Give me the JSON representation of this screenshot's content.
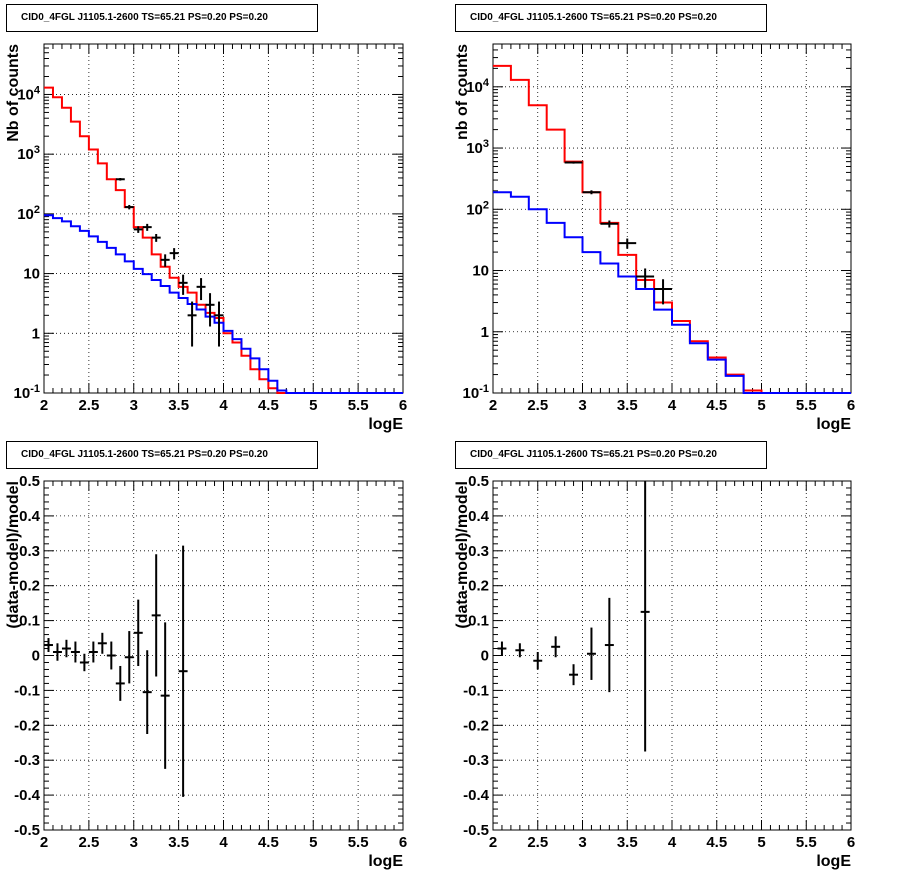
{
  "colors": {
    "model_total": "#ff0000",
    "model_background": "#0000ff",
    "data": "#000000",
    "grid": "#000000"
  },
  "chart_data": [
    {
      "type": "histogram-with-errorbars",
      "title": "CID0_4FGL J1105.1-2600 TS=65.21 PS=0.20 PS=0.20",
      "xlabel": "logE",
      "ylabel": "Nb of counts",
      "xlim": [
        2,
        6
      ],
      "ylim": [
        0.1,
        70000
      ],
      "yscale": "log",
      "x_ticks": [
        "2",
        "2.5",
        "3",
        "3.5",
        "4",
        "4.5",
        "5",
        "5.5",
        "6"
      ],
      "y_ticks": [
        "10^-1",
        "1",
        "10",
        "10^2",
        "10^3",
        "10^4"
      ],
      "grid": true,
      "bin_width": 0.1,
      "series": [
        {
          "color": "red",
          "bin_edges": [
            2,
            2.1,
            2.2,
            2.3,
            2.4,
            2.5,
            2.6,
            2.7,
            2.8,
            2.9,
            3.0,
            3.1,
            3.2,
            3.3,
            3.4,
            3.5,
            3.6,
            3.7,
            3.8,
            3.9,
            4.0,
            4.1,
            4.2,
            4.3,
            4.4,
            4.5,
            4.6,
            4.7,
            4.8,
            4.9,
            5.0,
            5.1,
            5.2,
            5.3,
            5.4,
            5.5,
            5.6,
            5.7,
            5.8,
            5.9,
            6.0
          ],
          "values": [
            13000,
            9000,
            6000,
            3500,
            2000,
            1200,
            700,
            380,
            250,
            130,
            60,
            40,
            21,
            13,
            8.5,
            6,
            4.8,
            3,
            2.2,
            1.8,
            1.0,
            0.7,
            0.42,
            0.25,
            0.17,
            0.12,
            0.1,
            0.1,
            0.1,
            0.1,
            0.1,
            0.1,
            0.1,
            0.1,
            0.1,
            0.1,
            0.1,
            0.1,
            0.1,
            0.1
          ]
        },
        {
          "color": "blue",
          "bin_edges": [
            2,
            2.1,
            2.2,
            2.3,
            2.4,
            2.5,
            2.6,
            2.7,
            2.8,
            2.9,
            3.0,
            3.1,
            3.2,
            3.3,
            3.4,
            3.5,
            3.6,
            3.7,
            3.8,
            3.9,
            4.0,
            4.1,
            4.2,
            4.3,
            4.4,
            4.5,
            4.6,
            4.7,
            4.8,
            4.9,
            5.0,
            5.1,
            5.2,
            5.3,
            5.4,
            5.5,
            5.6,
            5.7,
            5.8,
            5.9,
            6.0
          ],
          "values": [
            95,
            85,
            75,
            62,
            52,
            42,
            34,
            27,
            21,
            16,
            12,
            9.8,
            7.8,
            6.2,
            4.8,
            3.9,
            3.1,
            2.5,
            1.9,
            1.5,
            1.1,
            0.8,
            0.55,
            0.38,
            0.25,
            0.16,
            0.11,
            0.1,
            0.1,
            0.1,
            0.1,
            0.1,
            0.1,
            0.1,
            0.1,
            0.1,
            0.1,
            0.1,
            0.1,
            0.1
          ]
        }
      ],
      "data_points": [
        {
          "x": 2.85,
          "y": 380,
          "err": 19
        },
        {
          "x": 2.95,
          "y": 130,
          "err": 11
        },
        {
          "x": 3.05,
          "y": 55,
          "err": 7
        },
        {
          "x": 3.15,
          "y": 60,
          "err": 8
        },
        {
          "x": 3.25,
          "y": 40,
          "err": 6
        },
        {
          "x": 3.35,
          "y": 17,
          "err": 4
        },
        {
          "x": 3.45,
          "y": 22,
          "err": 4.7
        },
        {
          "x": 3.55,
          "y": 7,
          "err": 2.6
        },
        {
          "x": 3.65,
          "y": 2,
          "err": 1.4
        },
        {
          "x": 3.75,
          "y": 6,
          "err": 2.4
        },
        {
          "x": 3.85,
          "y": 3,
          "err": 1.7
        },
        {
          "x": 3.95,
          "y": 2,
          "err": 1.4
        }
      ]
    },
    {
      "type": "histogram-with-errorbars",
      "title": "CID0_4FGL J1105.1-2600 TS=65.21 PS=0.20 PS=0.20",
      "xlabel": "logE",
      "ylabel": "nb of counts",
      "xlim": [
        2,
        6
      ],
      "ylim": [
        0.1,
        50000
      ],
      "yscale": "log",
      "x_ticks": [
        "2",
        "2.5",
        "3",
        "3.5",
        "4",
        "4.5",
        "5",
        "5.5",
        "6"
      ],
      "y_ticks": [
        "10^-1",
        "1",
        "10",
        "10^2",
        "10^3",
        "10^4"
      ],
      "grid": true,
      "bin_width": 0.2,
      "series": [
        {
          "color": "red",
          "bin_edges": [
            2,
            2.2,
            2.4,
            2.6,
            2.8,
            3.0,
            3.2,
            3.4,
            3.6,
            3.8,
            4.0,
            4.2,
            4.4,
            4.6,
            4.8,
            5.0,
            5.2,
            5.4,
            5.6,
            5.8,
            6.0
          ],
          "values": [
            22000,
            13000,
            5000,
            2000,
            600,
            190,
            60,
            18,
            7,
            3,
            1.5,
            0.7,
            0.38,
            0.2,
            0.11,
            0.1,
            0.1,
            0.1,
            0.1,
            0.1
          ]
        },
        {
          "color": "blue",
          "bin_edges": [
            2,
            2.2,
            2.4,
            2.6,
            2.8,
            3.0,
            3.2,
            3.4,
            3.6,
            3.8,
            4.0,
            4.2,
            4.4,
            4.6,
            4.8,
            5.0,
            5.2,
            5.4,
            5.6,
            5.8,
            6.0
          ],
          "values": [
            190,
            160,
            100,
            60,
            35,
            20,
            13,
            8,
            5,
            2.3,
            1.3,
            0.65,
            0.35,
            0.19,
            0.1,
            0.1,
            0.1,
            0.1,
            0.1,
            0.1
          ]
        }
      ],
      "data_points": [
        {
          "x": 2.9,
          "y": 580,
          "err": 24
        },
        {
          "x": 3.1,
          "y": 190,
          "err": 14
        },
        {
          "x": 3.3,
          "y": 58,
          "err": 7.6
        },
        {
          "x": 3.5,
          "y": 28,
          "err": 5.3
        },
        {
          "x": 3.7,
          "y": 8,
          "err": 2.8
        },
        {
          "x": 3.9,
          "y": 5,
          "err": 2.2
        }
      ]
    },
    {
      "type": "scatter-errorbars",
      "title": "CID0_4FGL J1105.1-2600 TS=65.21 PS=0.20 PS=0.20",
      "xlabel": "logE",
      "ylabel": "(data-model)/model",
      "xlim": [
        2,
        6
      ],
      "ylim": [
        -0.5,
        0.5
      ],
      "x_ticks": [
        "2",
        "2.5",
        "3",
        "3.5",
        "4",
        "4.5",
        "5",
        "5.5",
        "6"
      ],
      "y_ticks": [
        "-0.5",
        "-0.4",
        "-0.3",
        "-0.2",
        "-0.1",
        "0",
        "0.1",
        "0.2",
        "0.3",
        "0.4",
        "0.5"
      ],
      "grid": true,
      "points": [
        {
          "x": 2.05,
          "y": 0.03,
          "err": 0.02
        },
        {
          "x": 2.15,
          "y": 0.01,
          "err": 0.025
        },
        {
          "x": 2.25,
          "y": 0.02,
          "err": 0.025
        },
        {
          "x": 2.35,
          "y": 0.01,
          "err": 0.03
        },
        {
          "x": 2.45,
          "y": -0.02,
          "err": 0.025
        },
        {
          "x": 2.55,
          "y": 0.01,
          "err": 0.03
        },
        {
          "x": 2.65,
          "y": 0.035,
          "err": 0.03
        },
        {
          "x": 2.75,
          "y": 0.0,
          "err": 0.04
        },
        {
          "x": 2.85,
          "y": -0.08,
          "err": 0.05
        },
        {
          "x": 2.95,
          "y": -0.005,
          "err": 0.075
        },
        {
          "x": 3.05,
          "y": 0.065,
          "err": 0.095
        },
        {
          "x": 3.15,
          "y": -0.105,
          "err": 0.12
        },
        {
          "x": 3.25,
          "y": 0.115,
          "err": 0.175
        },
        {
          "x": 3.35,
          "y": -0.115,
          "err": 0.21
        },
        {
          "x": 3.55,
          "y": -0.045,
          "err": 0.36
        }
      ]
    },
    {
      "type": "scatter-errorbars",
      "title": "CID0_4FGL J1105.1-2600 TS=65.21 PS=0.20 PS=0.20",
      "xlabel": "logE",
      "ylabel": "(data-model)/model",
      "xlim": [
        2,
        6
      ],
      "ylim": [
        -0.5,
        0.5
      ],
      "x_ticks": [
        "2",
        "2.5",
        "3",
        "3.5",
        "4",
        "4.5",
        "5",
        "5.5",
        "6"
      ],
      "y_ticks": [
        "-0.5",
        "-0.4",
        "-0.3",
        "-0.2",
        "-0.1",
        "0",
        "0.1",
        "0.2",
        "0.3",
        "0.4",
        "0.5"
      ],
      "grid": true,
      "points": [
        {
          "x": 2.1,
          "y": 0.02,
          "err": 0.02
        },
        {
          "x": 2.3,
          "y": 0.015,
          "err": 0.02
        },
        {
          "x": 2.5,
          "y": -0.015,
          "err": 0.025
        },
        {
          "x": 2.7,
          "y": 0.025,
          "err": 0.03
        },
        {
          "x": 2.9,
          "y": -0.055,
          "err": 0.03
        },
        {
          "x": 3.1,
          "y": 0.005,
          "err": 0.075
        },
        {
          "x": 3.3,
          "y": 0.03,
          "err": 0.135
        },
        {
          "x": 3.7,
          "y": 0.125,
          "err": 0.4
        }
      ]
    }
  ]
}
